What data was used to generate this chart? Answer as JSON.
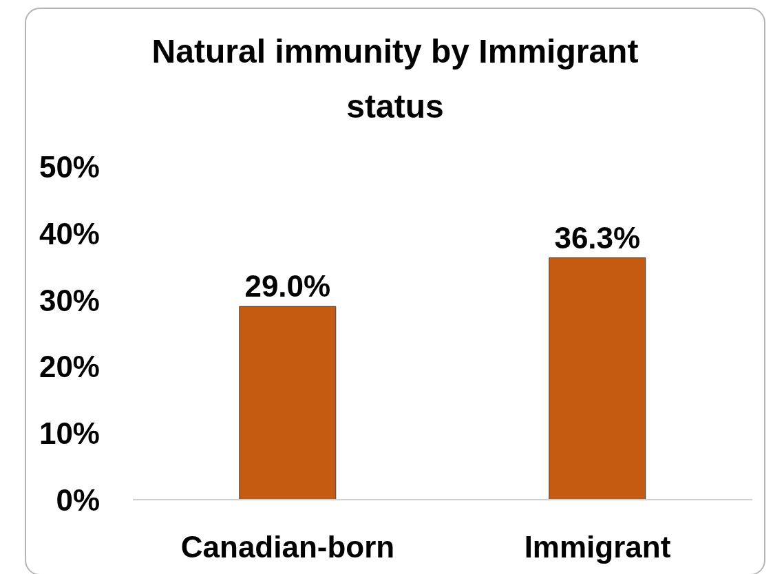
{
  "chart_data": {
    "type": "bar",
    "title": "Natural immunity by Immigrant status",
    "categories": [
      "Canadian-born",
      "Immigrant"
    ],
    "values": [
      29.0,
      36.3
    ],
    "value_labels": [
      "29.0%",
      "36.3%"
    ],
    "color": "#c55a11",
    "ylim": [
      0,
      50
    ],
    "yticks": [
      {
        "value": 0,
        "label": "0%"
      },
      {
        "value": 10,
        "label": "10%"
      },
      {
        "value": 20,
        "label": "20%"
      },
      {
        "value": 30,
        "label": "30%"
      },
      {
        "value": 40,
        "label": "40%"
      },
      {
        "value": 50,
        "label": "50%"
      }
    ]
  }
}
